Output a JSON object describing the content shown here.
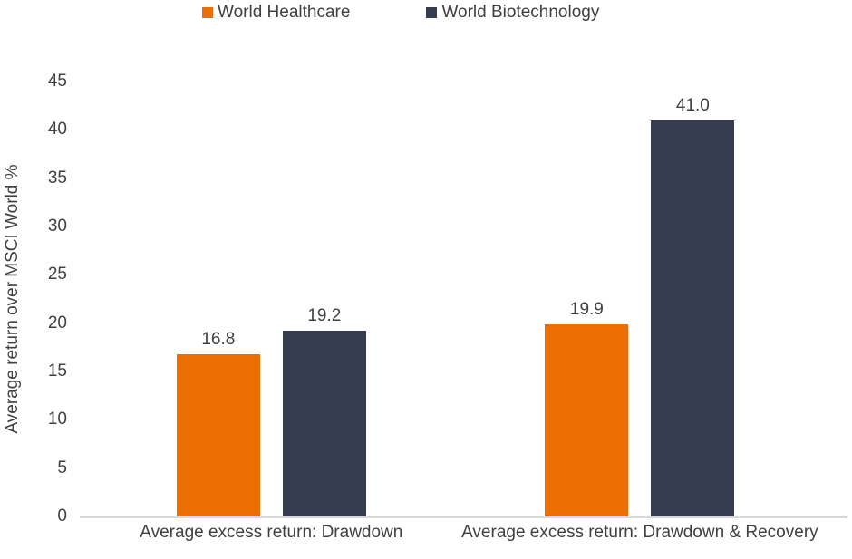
{
  "chart_data": {
    "type": "bar",
    "title": "",
    "categories": [
      "Average excess return: Drawdown",
      "Average excess return: Drawdown & Recovery"
    ],
    "series": [
      {
        "name": "World Healthcare",
        "color": "#ED6E05",
        "values": [
          16.8,
          19.9
        ]
      },
      {
        "name": "World Biotechnology",
        "color": "#373D50",
        "values": [
          19.2,
          41.0
        ]
      }
    ],
    "data_labels": {
      "World Healthcare": [
        "16.8",
        "19.9"
      ],
      "World Biotechnology": [
        "19.2",
        "41.0"
      ]
    },
    "xlabel": "",
    "ylabel": "Average return over MSCI World %",
    "ylim": [
      0,
      45
    ],
    "ytick_step": 5,
    "yticks": [
      "0",
      "5",
      "10",
      "15",
      "20",
      "25",
      "30",
      "35",
      "40",
      "45"
    ],
    "grid": false,
    "legend_position": "top",
    "legend": [
      "World Healthcare",
      "World Biotechnology"
    ]
  },
  "colors": {
    "healthcare_orange": "#ED6E05",
    "biotech_navy": "#373D50",
    "text": "#404040",
    "axis_line": "#D9D9D9",
    "background": "#FFFFFF"
  }
}
